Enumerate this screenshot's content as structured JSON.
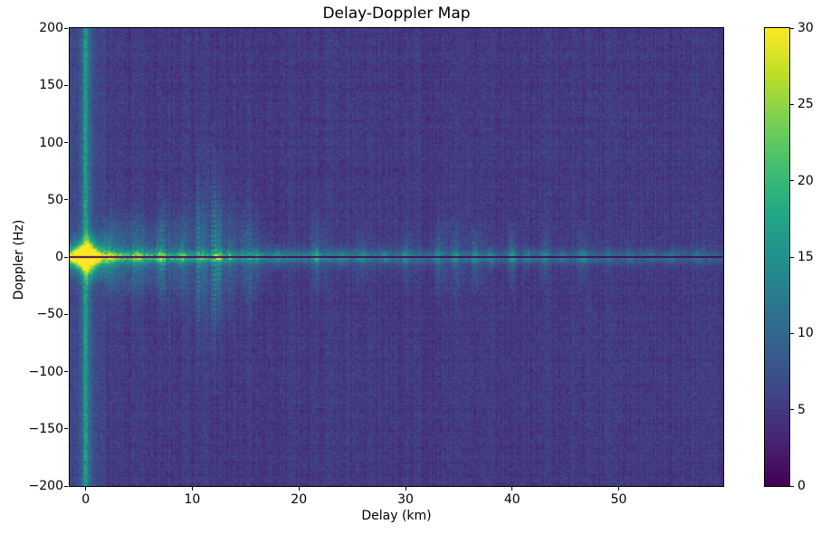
{
  "chart_data": {
    "type": "heatmap",
    "title": "Delay-Doppler Map",
    "xlabel": "Delay (km)",
    "ylabel": "Doppler (Hz)",
    "xlim": [
      -1.5,
      59.8
    ],
    "ylim": [
      -200,
      200
    ],
    "x_tick_values": [
      0,
      10,
      20,
      30,
      40,
      50
    ],
    "x_tick_labels": [
      "0",
      "10",
      "20",
      "30",
      "40",
      "50"
    ],
    "y_tick_values": [
      200,
      150,
      100,
      50,
      0,
      -50,
      -100,
      -150,
      -200
    ],
    "y_tick_labels": [
      "200",
      "150",
      "100",
      "50",
      "0",
      "−50",
      "−100",
      "−150",
      "−200"
    ],
    "grid": false,
    "legend": null,
    "colorbar": {
      "min": 0,
      "max": 30,
      "tick_values": [
        0,
        5,
        10,
        15,
        20,
        25,
        30
      ],
      "tick_labels": [
        "0",
        "5",
        "10",
        "15",
        "20",
        "25",
        "30"
      ]
    },
    "colormap": {
      "name": "viridis",
      "anchors": [
        [
          0.0,
          "#440154"
        ],
        [
          0.1,
          "#482475"
        ],
        [
          0.2,
          "#414487"
        ],
        [
          0.3,
          "#355f8d"
        ],
        [
          0.4,
          "#2a788e"
        ],
        [
          0.5,
          "#21918c"
        ],
        [
          0.6,
          "#22a884"
        ],
        [
          0.7,
          "#44bf70"
        ],
        [
          0.8,
          "#7ad151"
        ],
        [
          0.9,
          "#bddf26"
        ],
        [
          1.0,
          "#fde725"
        ]
      ]
    },
    "summary": "Viridis delay-Doppler intensity map. Noisy dark purple-blue background (~values 3-8). A teal vertical stripe at 0 km delay spans all Doppler frequencies. A bright green ridge runs along 0 Hz Doppler across all delays, brightest near 0 km and fading with delay, cut by a 2 px near-zero-value dark line exactly at 0 Hz. Peak value ~30 (yellow hotspot) at delay 0 km, Doppler 0 Hz. Dotted vertical streak clusters rise from the ridge, strongest near 11-13 km (reaching about ±70 Hz), with smaller clusters near 4-8, 21.7, 33-37, 40 and 46.6 km.",
    "render": {
      "seed": 42,
      "cols": 361,
      "rows": 253,
      "value_range": [
        0,
        30
      ],
      "noise_mean": 5.0,
      "noise_spread": 1.7,
      "col_noise": 0.7,
      "row_noise": 0.35,
      "stripe": {
        "center_km": 0,
        "sigma_km": 0.32,
        "amp": 8.5,
        "halo_amp": 2.8,
        "halo_sigma_km": 1.5
      },
      "zero_line": {
        "doppler_hz": 0,
        "value": 0.8,
        "half_width_hz": 0.8
      },
      "ridge": {
        "base": 4.5,
        "peak": 24,
        "peak_sigma_km": 0.9,
        "decay1_amp": 10,
        "decay1_scale_km": 9,
        "decay2_amp": 5,
        "decay2_scale_km": 35,
        "core_hz": 4.2,
        "core_pow": 1.4,
        "skirt_frac": 0.45,
        "skirt_base_hz": 7,
        "skirt_cluster_hz": 26
      },
      "hotspot": {
        "delay_km": 0,
        "doppler_hz": 0,
        "peak": 26,
        "sigma_km": 0.55,
        "sigma_hz": 6,
        "halo_peak": 8,
        "halo_sigma_km": 1.6,
        "halo_sigma_hz": 18
      },
      "streaks": {
        "spacing_km": 0.48,
        "capture_km": 0.35,
        "amp": 6.2,
        "reach_base_hz": 11,
        "reach_scale_hz": 62,
        "dash_period_rows": 2.7,
        "baseline_near": 0.15,
        "baseline_far": 0.04,
        "near_limit_km": 16
      },
      "clusters": [
        [
          2.5,
          0.8,
          0.35
        ],
        [
          4.5,
          1.5,
          0.45
        ],
        [
          7.5,
          1.2,
          0.4
        ],
        [
          11.8,
          3.0,
          1.0
        ],
        [
          16.0,
          1.0,
          0.3
        ],
        [
          21.8,
          0.8,
          0.45
        ],
        [
          26.0,
          0.8,
          0.25
        ],
        [
          30.0,
          0.8,
          0.3
        ],
        [
          34.2,
          1.8,
          0.55
        ],
        [
          36.8,
          0.8,
          0.35
        ],
        [
          40.0,
          0.5,
          0.4
        ],
        [
          43.0,
          0.6,
          0.25
        ],
        [
          46.6,
          0.5,
          0.35
        ]
      ],
      "spots": [
        [
          2.3,
          5.0
        ],
        [
          4.8,
          4.0
        ],
        [
          7.0,
          4.5
        ],
        [
          9.0,
          4.0
        ],
        [
          11.0,
          5.0
        ],
        [
          12.4,
          7.0
        ],
        [
          13.5,
          4.5
        ],
        [
          16.0,
          3.5
        ],
        [
          18.0,
          3.0
        ],
        [
          21.7,
          6.0
        ],
        [
          24.0,
          3.0
        ],
        [
          26.0,
          3.5
        ],
        [
          28.0,
          3.0
        ],
        [
          30.0,
          3.5
        ],
        [
          33.0,
          4.0
        ],
        [
          34.7,
          5.0
        ],
        [
          36.5,
          4.5
        ],
        [
          38.0,
          3.5
        ],
        [
          40.0,
          5.5
        ],
        [
          41.5,
          3.0
        ],
        [
          43.0,
          3.5
        ],
        [
          44.7,
          3.0
        ],
        [
          46.6,
          5.0
        ],
        [
          49.0,
          2.5
        ],
        [
          51.0,
          2.5
        ],
        [
          53.0,
          2.5
        ],
        [
          55.0,
          2.5
        ],
        [
          57.5,
          2.5
        ]
      ]
    }
  }
}
